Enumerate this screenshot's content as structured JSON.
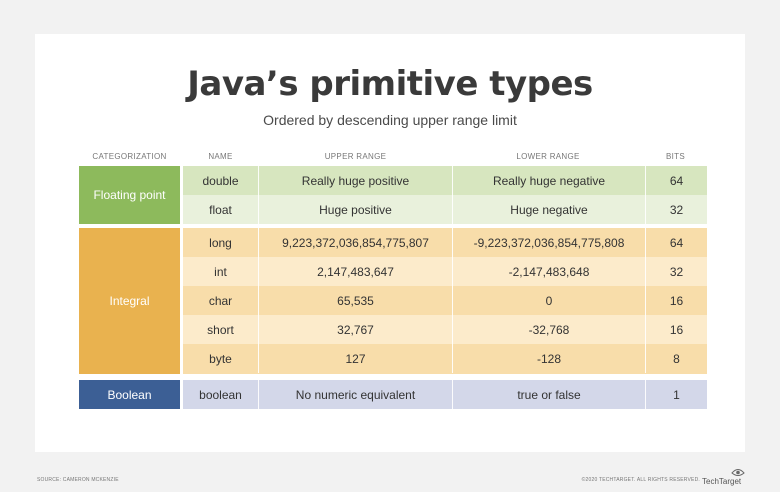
{
  "title": "Java’s primitive types",
  "subtitle": "Ordered by descending upper range limit",
  "headers": {
    "categorization": "CATEGORIZATION",
    "name": "NAME",
    "upper": "UPPER RANGE",
    "lower": "LOWER RANGE",
    "bits": "BITS"
  },
  "categories": {
    "floating": "Floating point",
    "integral": "Integral",
    "boolean": "Boolean"
  },
  "rows": [
    {
      "name": "double",
      "upper": "Really huge positive",
      "lower": "Really huge negative",
      "bits": "64"
    },
    {
      "name": "float",
      "upper": "Huge positive",
      "lower": "Huge negative",
      "bits": "32"
    },
    {
      "name": "long",
      "upper": "9,223,372,036,854,775,807",
      "lower": "-9,223,372,036,854,775,808",
      "bits": "64"
    },
    {
      "name": "int",
      "upper": "2,147,483,647",
      "lower": "-2,147,483,648",
      "bits": "32"
    },
    {
      "name": "char",
      "upper": "65,535",
      "lower": "0",
      "bits": "16"
    },
    {
      "name": "short",
      "upper": "32,767",
      "lower": "-32,768",
      "bits": "16"
    },
    {
      "name": "byte",
      "upper": "127",
      "lower": "-128",
      "bits": "8"
    },
    {
      "name": "boolean",
      "upper": "No numeric equivalent",
      "lower": "true or false",
      "bits": "1"
    }
  ],
  "footer": {
    "source": "SOURCE: CAMERON MCKENZIE",
    "copyright": "©2020 TECHTARGET. ALL RIGHTS RESERVED.",
    "logo": "TechTarget"
  },
  "colors": {
    "float_cat": "#8dba5c",
    "float_row_dark": "#d7e6bf",
    "float_row_light": "#e9f1dc",
    "int_cat": "#e9b24f",
    "int_row_dark": "#f8ddaa",
    "int_row_light": "#fcebcb",
    "bool_cat": "#3c5f95",
    "bool_row": "#d3d7e9"
  }
}
